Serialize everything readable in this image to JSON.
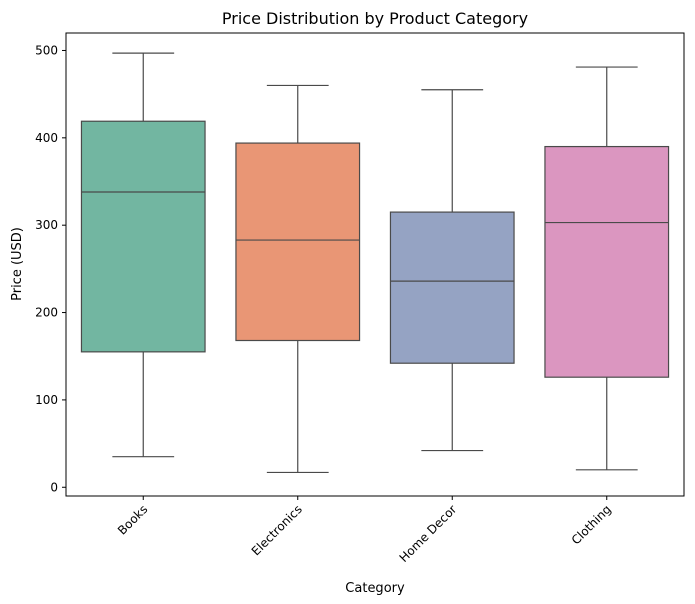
{
  "chart_data": {
    "type": "box",
    "title": "Price Distribution by Product Category",
    "xlabel": "Category",
    "ylabel": "Price (USD)",
    "ylim": [
      -10,
      520
    ],
    "yticks": [
      0,
      100,
      200,
      300,
      400,
      500
    ],
    "yticks_text": [
      "0",
      "100",
      "200",
      "300",
      "400",
      "500"
    ],
    "grid": false,
    "categories": [
      "Books",
      "Electronics",
      "Home Decor",
      "Clothing"
    ],
    "boxes": [
      {
        "category": "Books",
        "min": 35,
        "q1": 155,
        "median": 338,
        "q3": 419,
        "max": 497,
        "color": "#72b6a1"
      },
      {
        "category": "Electronics",
        "min": 17,
        "q1": 168,
        "median": 283,
        "q3": 394,
        "max": 460,
        "color": "#e99675"
      },
      {
        "category": "Home Decor",
        "min": 42,
        "q1": 142,
        "median": 236,
        "q3": 315,
        "max": 455,
        "color": "#95a3c3"
      },
      {
        "category": "Clothing",
        "min": 20,
        "q1": 126,
        "median": 303,
        "q3": 390,
        "max": 481,
        "color": "#db96c0"
      }
    ]
  }
}
